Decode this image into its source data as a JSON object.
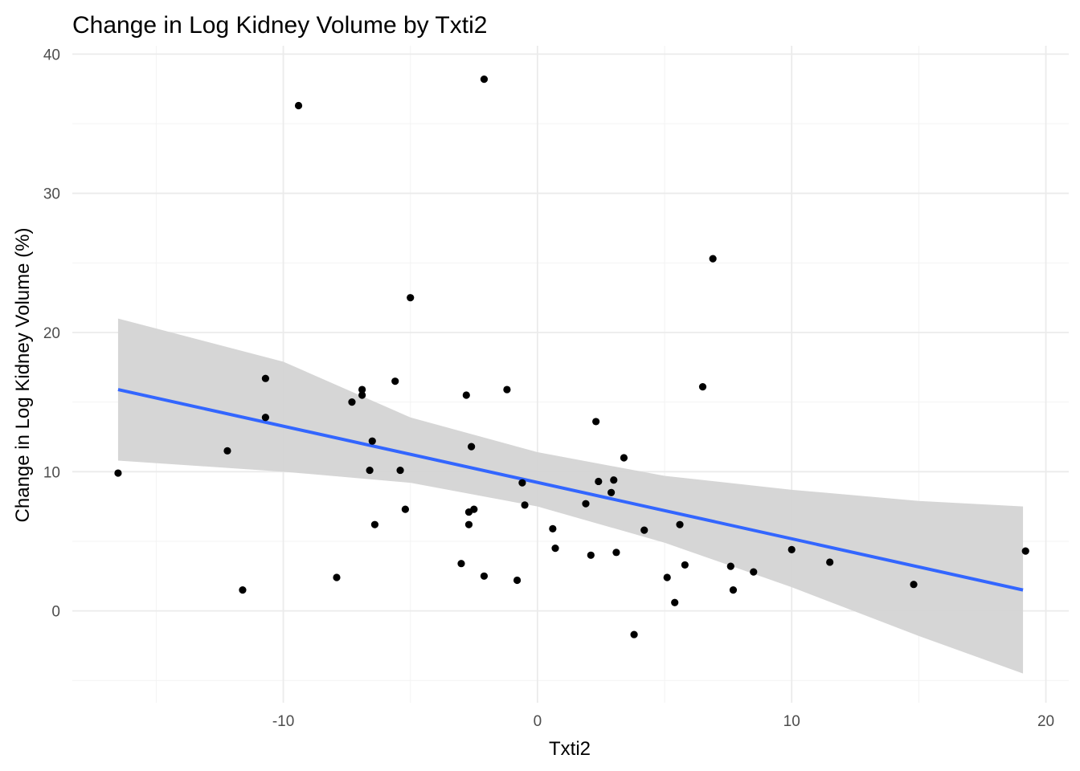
{
  "chart_data": {
    "type": "scatter",
    "title": "Change in Log Kidney Volume by Txti2",
    "xlabel": "Txti2",
    "ylabel": "Change in Log Kidney Volume (%)",
    "xlim": [
      -18.3,
      20.9
    ],
    "ylim": [
      -6.6,
      40.6
    ],
    "x_ticks": [
      -10,
      0,
      10,
      20
    ],
    "x_tick_labels": [
      "-10",
      "0",
      "10",
      "20"
    ],
    "y_ticks": [
      0,
      10,
      20,
      30,
      40
    ],
    "y_tick_labels": [
      "0",
      "10",
      "20",
      "30",
      "40"
    ],
    "grid": true,
    "colors": {
      "points": "#000000",
      "fit_line": "#3366ff",
      "ribbon": "#d4d4d4"
    },
    "points": [
      {
        "x": -16.5,
        "y": 9.9
      },
      {
        "x": -12.2,
        "y": 11.5
      },
      {
        "x": -11.6,
        "y": 1.5
      },
      {
        "x": -10.7,
        "y": 16.7
      },
      {
        "x": -10.7,
        "y": 13.9
      },
      {
        "x": -9.4,
        "y": 36.3
      },
      {
        "x": -7.9,
        "y": 2.4
      },
      {
        "x": -7.3,
        "y": 15.0
      },
      {
        "x": -6.9,
        "y": 15.9
      },
      {
        "x": -6.9,
        "y": 15.5
      },
      {
        "x": -6.6,
        "y": 10.1
      },
      {
        "x": -6.5,
        "y": 12.2
      },
      {
        "x": -6.4,
        "y": 6.2
      },
      {
        "x": -5.6,
        "y": 16.5
      },
      {
        "x": -5.4,
        "y": 10.1
      },
      {
        "x": -5.2,
        "y": 7.3
      },
      {
        "x": -5.0,
        "y": 22.5
      },
      {
        "x": -3.0,
        "y": 3.4
      },
      {
        "x": -2.8,
        "y": 15.5
      },
      {
        "x": -2.7,
        "y": 6.2
      },
      {
        "x": -2.7,
        "y": 7.1
      },
      {
        "x": -2.6,
        "y": 11.8
      },
      {
        "x": -2.5,
        "y": 7.3
      },
      {
        "x": -2.1,
        "y": 38.2
      },
      {
        "x": -2.1,
        "y": 2.5
      },
      {
        "x": -1.2,
        "y": 15.9
      },
      {
        "x": -0.8,
        "y": 2.2
      },
      {
        "x": -0.6,
        "y": 9.2
      },
      {
        "x": -0.5,
        "y": 7.6
      },
      {
        "x": 0.6,
        "y": 5.9
      },
      {
        "x": 0.7,
        "y": 4.5
      },
      {
        "x": 1.9,
        "y": 7.7
      },
      {
        "x": 2.1,
        "y": 4.0
      },
      {
        "x": 2.3,
        "y": 13.6
      },
      {
        "x": 2.4,
        "y": 9.3
      },
      {
        "x": 2.9,
        "y": 8.5
      },
      {
        "x": 3.0,
        "y": 9.4
      },
      {
        "x": 3.1,
        "y": 4.2
      },
      {
        "x": 3.4,
        "y": 11.0
      },
      {
        "x": 3.8,
        "y": -1.7
      },
      {
        "x": 4.2,
        "y": 5.8
      },
      {
        "x": 5.1,
        "y": 2.4
      },
      {
        "x": 5.4,
        "y": 0.6
      },
      {
        "x": 5.6,
        "y": 6.2
      },
      {
        "x": 5.8,
        "y": 3.3
      },
      {
        "x": 6.5,
        "y": 16.1
      },
      {
        "x": 6.9,
        "y": 25.3
      },
      {
        "x": 7.6,
        "y": 3.2
      },
      {
        "x": 7.7,
        "y": 1.5
      },
      {
        "x": 8.5,
        "y": 2.8
      },
      {
        "x": 10.0,
        "y": 4.4
      },
      {
        "x": 11.5,
        "y": 3.5
      },
      {
        "x": 14.8,
        "y": 1.9
      },
      {
        "x": 19.2,
        "y": 4.3
      }
    ],
    "fit_line": [
      {
        "x": -16.5,
        "y": 15.9
      },
      {
        "x": 19.1,
        "y": 1.5
      }
    ],
    "ribbon": [
      {
        "x": -16.5,
        "lower": 10.8,
        "upper": 21.0
      },
      {
        "x": -10.0,
        "lower": 10.0,
        "upper": 17.9
      },
      {
        "x": -5.0,
        "lower": 9.2,
        "upper": 13.9
      },
      {
        "x": 0.0,
        "lower": 7.5,
        "upper": 11.4
      },
      {
        "x": 5.0,
        "lower": 4.9,
        "upper": 9.7
      },
      {
        "x": 10.0,
        "lower": 1.7,
        "upper": 8.7
      },
      {
        "x": 15.0,
        "lower": -1.8,
        "upper": 7.9
      },
      {
        "x": 19.1,
        "lower": -4.5,
        "upper": 7.5
      }
    ]
  }
}
